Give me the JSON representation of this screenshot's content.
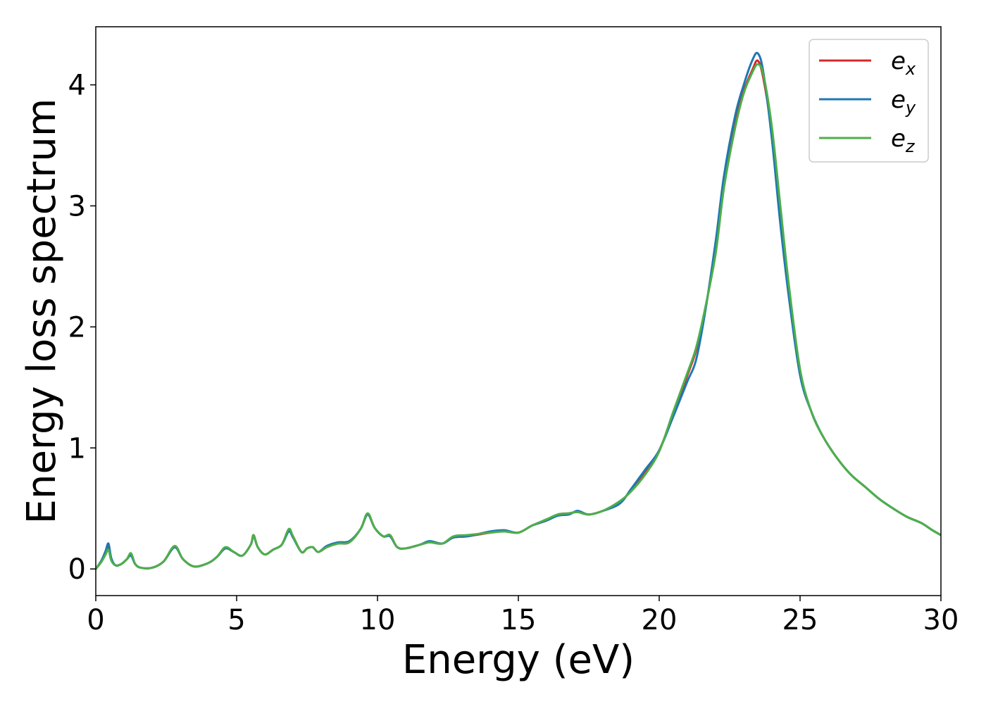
{
  "chart_data": {
    "type": "line",
    "title": "",
    "xlabel": "Energy (eV)",
    "ylabel": "Energy loss spectrum",
    "xlim": [
      0,
      30
    ],
    "ylim": [
      -0.22,
      4.48
    ],
    "xticks": [
      0,
      5,
      10,
      15,
      20,
      25,
      30
    ],
    "xtick_labels": [
      "0",
      "5",
      "10",
      "15",
      "20",
      "25",
      "30"
    ],
    "yticks": [
      0,
      1,
      2,
      3,
      4
    ],
    "ytick_labels": [
      "0",
      "1",
      "2",
      "3",
      "4"
    ],
    "grid": false,
    "legend_position": "top-right",
    "series": [
      {
        "name": "e_x",
        "legend_base": "e",
        "legend_sub": "x",
        "color": "#d62728",
        "x": [
          0,
          0.2,
          0.35,
          0.45,
          0.55,
          0.7,
          0.9,
          1.1,
          1.25,
          1.4,
          1.6,
          2.0,
          2.4,
          2.8,
          3.1,
          3.5,
          4.0,
          4.3,
          4.6,
          4.9,
          5.2,
          5.5,
          5.6,
          5.75,
          6.0,
          6.3,
          6.6,
          6.85,
          7.0,
          7.3,
          7.5,
          7.7,
          7.9,
          8.2,
          8.6,
          9.0,
          9.4,
          9.65,
          9.9,
          10.2,
          10.45,
          10.7,
          11.0,
          11.5,
          11.85,
          12.3,
          12.7,
          13.2,
          14.0,
          14.5,
          15.0,
          15.5,
          16.0,
          16.4,
          16.8,
          17.1,
          17.5,
          18.0,
          18.6,
          19.0,
          19.5,
          20.0,
          20.5,
          21.0,
          21.3,
          21.6,
          22.0,
          22.3,
          22.7,
          23.0,
          23.3,
          23.5,
          23.7,
          24.0,
          24.3,
          24.6,
          25.0,
          25.4,
          25.8,
          26.3,
          26.8,
          27.3,
          27.8,
          28.3,
          28.8,
          29.3,
          29.7,
          30.0
        ],
        "y": [
          0.0,
          0.06,
          0.13,
          0.19,
          0.08,
          0.03,
          0.04,
          0.08,
          0.12,
          0.04,
          0.01,
          0.01,
          0.06,
          0.18,
          0.08,
          0.02,
          0.05,
          0.1,
          0.17,
          0.14,
          0.11,
          0.2,
          0.28,
          0.18,
          0.12,
          0.16,
          0.2,
          0.32,
          0.27,
          0.14,
          0.17,
          0.18,
          0.14,
          0.18,
          0.21,
          0.22,
          0.33,
          0.45,
          0.34,
          0.27,
          0.27,
          0.18,
          0.17,
          0.2,
          0.22,
          0.21,
          0.26,
          0.27,
          0.3,
          0.31,
          0.3,
          0.36,
          0.4,
          0.45,
          0.46,
          0.47,
          0.45,
          0.48,
          0.55,
          0.65,
          0.8,
          0.98,
          1.28,
          1.6,
          1.8,
          2.1,
          2.65,
          3.2,
          3.7,
          3.95,
          4.12,
          4.2,
          4.05,
          3.6,
          2.95,
          2.3,
          1.62,
          1.3,
          1.1,
          0.92,
          0.78,
          0.68,
          0.58,
          0.5,
          0.43,
          0.38,
          0.32,
          0.28
        ]
      },
      {
        "name": "e_y",
        "legend_base": "e",
        "legend_sub": "y",
        "color": "#1f77b4",
        "x": [
          0,
          0.2,
          0.35,
          0.45,
          0.55,
          0.7,
          0.9,
          1.1,
          1.25,
          1.4,
          1.6,
          2.0,
          2.4,
          2.8,
          3.1,
          3.5,
          4.0,
          4.3,
          4.6,
          4.9,
          5.2,
          5.5,
          5.6,
          5.75,
          6.0,
          6.3,
          6.6,
          6.85,
          7.0,
          7.3,
          7.5,
          7.7,
          7.9,
          8.2,
          8.6,
          9.0,
          9.4,
          9.65,
          9.9,
          10.2,
          10.45,
          10.7,
          11.0,
          11.5,
          11.85,
          12.3,
          12.7,
          13.2,
          14.0,
          14.5,
          15.0,
          15.5,
          16.0,
          16.4,
          16.8,
          17.1,
          17.5,
          18.0,
          18.6,
          19.0,
          19.5,
          20.0,
          20.5,
          21.0,
          21.3,
          21.6,
          22.0,
          22.3,
          22.7,
          23.0,
          23.3,
          23.5,
          23.7,
          24.0,
          24.3,
          24.6,
          25.0,
          25.4,
          25.8,
          26.3,
          26.8,
          27.3,
          27.8,
          28.3,
          28.8,
          29.3,
          29.7,
          30.0
        ],
        "y": [
          0.0,
          0.07,
          0.15,
          0.21,
          0.09,
          0.03,
          0.04,
          0.08,
          0.11,
          0.04,
          0.01,
          0.01,
          0.06,
          0.18,
          0.08,
          0.02,
          0.05,
          0.1,
          0.17,
          0.14,
          0.11,
          0.2,
          0.27,
          0.18,
          0.12,
          0.16,
          0.2,
          0.31,
          0.26,
          0.14,
          0.17,
          0.18,
          0.14,
          0.19,
          0.22,
          0.23,
          0.33,
          0.45,
          0.34,
          0.27,
          0.27,
          0.18,
          0.17,
          0.2,
          0.23,
          0.21,
          0.26,
          0.27,
          0.31,
          0.32,
          0.3,
          0.36,
          0.4,
          0.44,
          0.45,
          0.48,
          0.45,
          0.48,
          0.54,
          0.66,
          0.82,
          0.98,
          1.26,
          1.55,
          1.72,
          2.08,
          2.7,
          3.25,
          3.75,
          4.0,
          4.2,
          4.26,
          4.1,
          3.55,
          2.85,
          2.25,
          1.6,
          1.3,
          1.1,
          0.92,
          0.78,
          0.68,
          0.58,
          0.5,
          0.43,
          0.38,
          0.32,
          0.28
        ]
      },
      {
        "name": "e_z",
        "legend_base": "e",
        "legend_sub": "z",
        "color": "#4daf4a",
        "x": [
          0,
          0.2,
          0.35,
          0.45,
          0.55,
          0.7,
          0.9,
          1.1,
          1.25,
          1.4,
          1.6,
          2.0,
          2.4,
          2.8,
          3.1,
          3.5,
          4.0,
          4.3,
          4.6,
          4.9,
          5.2,
          5.5,
          5.6,
          5.75,
          6.0,
          6.3,
          6.6,
          6.85,
          7.0,
          7.3,
          7.5,
          7.7,
          7.9,
          8.2,
          8.6,
          9.0,
          9.4,
          9.65,
          9.9,
          10.2,
          10.45,
          10.7,
          11.0,
          11.5,
          11.85,
          12.3,
          12.7,
          13.2,
          14.0,
          14.5,
          15.0,
          15.5,
          16.0,
          16.4,
          16.8,
          17.1,
          17.5,
          18.0,
          18.6,
          19.0,
          19.5,
          20.0,
          20.5,
          21.0,
          21.3,
          21.6,
          22.0,
          22.3,
          22.7,
          23.0,
          23.3,
          23.5,
          23.7,
          24.0,
          24.3,
          24.6,
          25.0,
          25.4,
          25.8,
          26.3,
          26.8,
          27.3,
          27.8,
          28.3,
          28.8,
          29.3,
          29.7,
          30.0
        ],
        "y": [
          0.0,
          0.06,
          0.12,
          0.16,
          0.07,
          0.03,
          0.04,
          0.08,
          0.13,
          0.04,
          0.01,
          0.01,
          0.06,
          0.19,
          0.08,
          0.02,
          0.05,
          0.1,
          0.18,
          0.14,
          0.11,
          0.2,
          0.28,
          0.18,
          0.12,
          0.16,
          0.2,
          0.33,
          0.27,
          0.14,
          0.17,
          0.18,
          0.14,
          0.18,
          0.21,
          0.22,
          0.33,
          0.46,
          0.34,
          0.27,
          0.28,
          0.18,
          0.17,
          0.2,
          0.22,
          0.21,
          0.27,
          0.28,
          0.3,
          0.31,
          0.3,
          0.36,
          0.41,
          0.45,
          0.46,
          0.47,
          0.45,
          0.48,
          0.56,
          0.64,
          0.78,
          0.97,
          1.3,
          1.62,
          1.82,
          2.12,
          2.6,
          3.15,
          3.65,
          3.93,
          4.1,
          4.17,
          4.08,
          3.65,
          3.0,
          2.35,
          1.65,
          1.3,
          1.1,
          0.92,
          0.78,
          0.68,
          0.58,
          0.5,
          0.43,
          0.38,
          0.32,
          0.28
        ]
      }
    ]
  }
}
